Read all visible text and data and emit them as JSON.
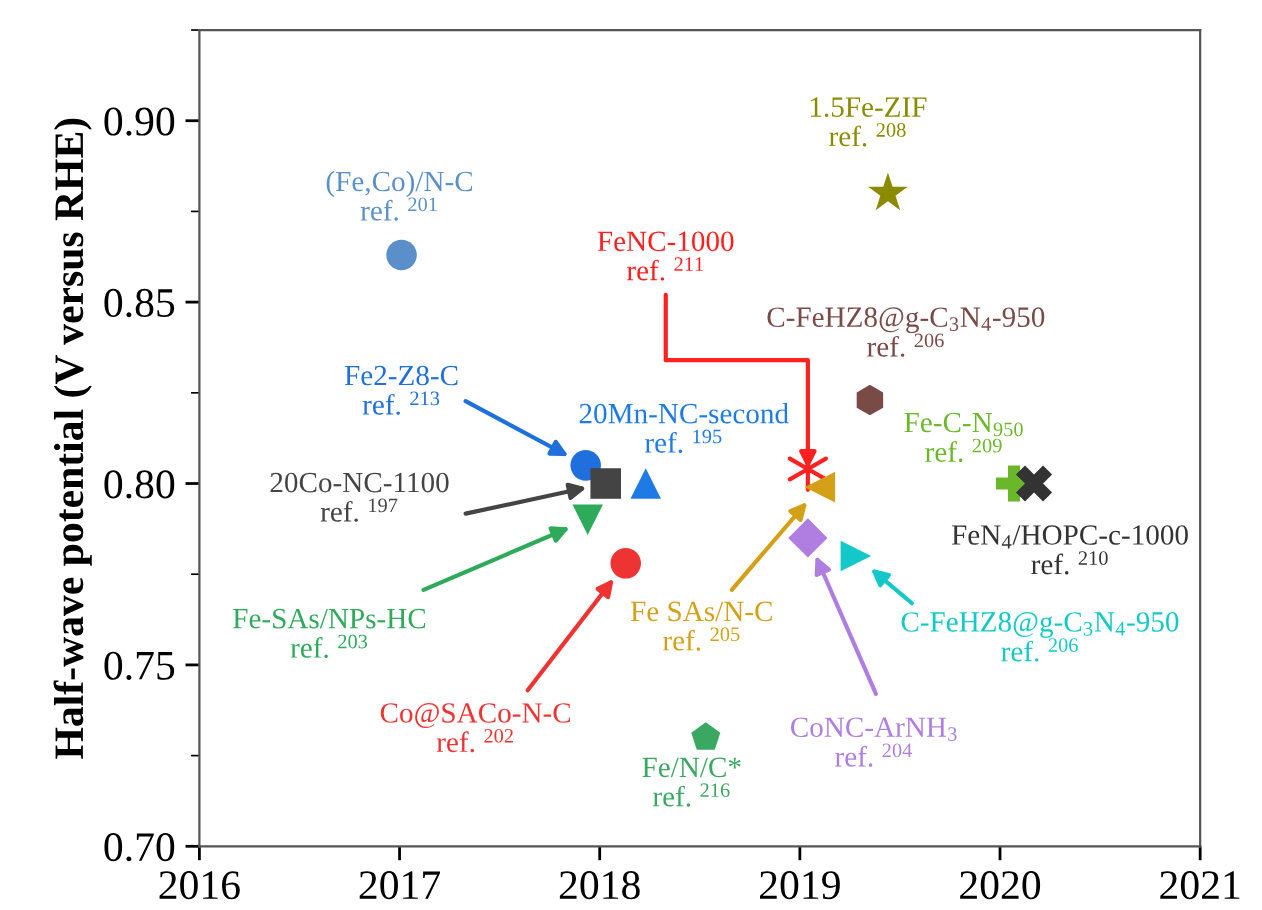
{
  "chart_data": {
    "type": "scatter",
    "ylabel": "Half-wave potential (V versus RHE)",
    "xlim": [
      2016,
      2021
    ],
    "xticks": [
      2016,
      2017,
      2018,
      2019,
      2020,
      2021
    ],
    "ylim": [
      0.7,
      0.925
    ],
    "yticks": [
      {
        "value": 0.7,
        "label": "0.70"
      },
      {
        "value": 0.75,
        "label": "0.75"
      },
      {
        "value": 0.8,
        "label": "0.80"
      },
      {
        "value": 0.85,
        "label": "0.85"
      },
      {
        "value": 0.9,
        "label": "0.90"
      }
    ],
    "grid": false,
    "series": [
      {
        "name": "(Fe,Co)/N-C\nref. $^{201}$",
        "color": "#5b8fc9",
        "marker": "circle",
        "x": [
          2017.01
        ],
        "values": [
          0.863
        ]
      },
      {
        "name": "1.5Fe-ZIF\nref. $^{208}$",
        "color": "#8b8b00",
        "marker": "star",
        "x": [
          2019.44
        ],
        "values": [
          0.88
        ]
      },
      {
        "name": "C-FeHZ8@g-C$_{3}$N$_{4}$-950\nref. $^{206}$",
        "color": "#7a4a47",
        "x": [
          2019.35
        ],
        "values": [
          0.823
        ]
      },
      {
        "name": "Fe2-Z8-C\nref. $^{213}$",
        "color": "#1f6fdc",
        "marker": "circle",
        "x": [
          2017.93
        ],
        "values": [
          0.805
        ]
      },
      {
        "name": "20Co-NC-1100\nref. $^{197}$",
        "color": "#444444",
        "marker": "square",
        "x": [
          2018.03
        ],
        "values": [
          0.8
        ]
      },
      {
        "name": "20Mn-NC-second\nref. $^{195}$",
        "color": "#1e7be6",
        "marker": "triangle",
        "x": [
          2018.23
        ],
        "values": [
          0.8
        ]
      },
      {
        "name": "Fe-SAs/NPs-HC\nref. $^{203}$",
        "color": "#2eaa5a",
        "marker": "triangle_down",
        "x": [
          2017.94
        ],
        "values": [
          0.79
        ]
      },
      {
        "name": "Co@SACo-N-C\nref. $^{202}$",
        "color": "#ee3333",
        "marker": "circle",
        "x": [
          2018.13
        ],
        "values": [
          0.778
        ]
      },
      {
        "name": "Fe/N/C*\nref. $^{216}$",
        "color": "#3aa860",
        "x": [
          2018.53
        ],
        "values": [
          0.73
        ]
      },
      {
        "name": "FeNC-1000\nref. $^{211}$",
        "color": "#ff2020",
        "x": [
          2019.04
        ],
        "values": [
          0.804
        ]
      },
      {
        "name": "Fe SAs/N-C\nref. $^{205}$",
        "color": "#d4a017",
        "marker": "triangle_left",
        "x": [
          2019.1
        ],
        "values": [
          0.799
        ]
      },
      {
        "name": "CoNC-ArNH$_{3}$\nref. $^{204}$",
        "color": "#b07de0",
        "marker": "diamond",
        "x": [
          2019.04
        ],
        "values": [
          0.785
        ]
      },
      {
        "name": "C-FeHZ8@g-C$_{3}$N$_{4}$-950\nref. $^{206}$",
        "color": "#12c8c8",
        "marker": "triangle_right",
        "x": [
          2019.28
        ],
        "values": [
          0.78
        ]
      },
      {
        "name": "Fe-C-N$_{950}$\nref. $^{209}$",
        "color": "#6ab82a",
        "marker": "plus",
        "x": [
          2020.07
        ],
        "values": [
          0.8
        ]
      },
      {
        "name": "FeN$_{4}$/HOPC-c-1000\nref. $^{210}$",
        "color": "#333333",
        "marker": "cross",
        "x": [
          2020.17
        ],
        "values": [
          0.8
        ]
      }
    ]
  }
}
